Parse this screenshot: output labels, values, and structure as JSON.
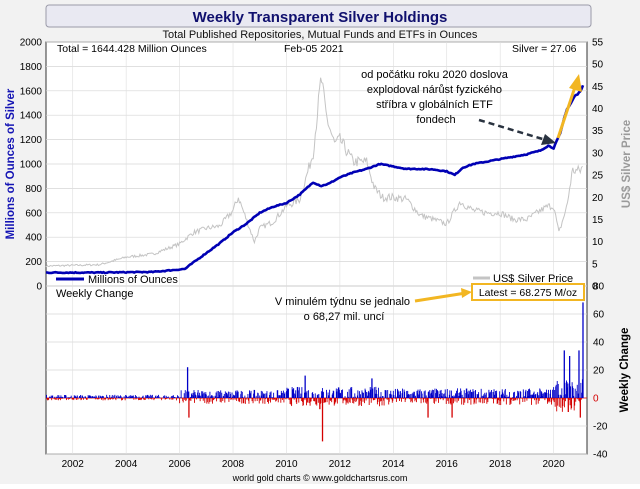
{
  "chart_data": [
    {
      "type": "line",
      "title": "Weekly Transparent Silver Holdings",
      "subtitle": "Total Published Repositories, Mutual Funds and ETFs in Ounces",
      "info_total": "Total = 1644.428 Million Ounces",
      "info_date": "Feb-05  2021",
      "info_silver": "Silver = 27.06",
      "ylabel_left": "Millions of Ounces of Silver",
      "ylabel_right": "US$ Silver Price",
      "ylim_left": [
        0,
        2000
      ],
      "ylim_right": [
        0,
        55
      ],
      "yticks_left": [
        "0",
        "200",
        "400",
        "600",
        "800",
        "1000",
        "1200",
        "1400",
        "1600",
        "1800",
        "2000"
      ],
      "yticks_right": [
        "0",
        "5",
        "10",
        "15",
        "20",
        "25",
        "30",
        "35",
        "40",
        "45",
        "50",
        "55"
      ],
      "xlim": [
        2001,
        2021.25
      ],
      "xticks": [
        "2002",
        "2004",
        "2006",
        "2008",
        "2010",
        "2012",
        "2014",
        "2016",
        "2018",
        "2020"
      ],
      "annotation": "od počátku roku 2020 doslova explodoval nárůst fyzického stříbra v globálních ETF fondech",
      "series": [
        {
          "name": "Millions of Ounces",
          "color": "#0000b4",
          "x": [
            2001,
            2003,
            2005,
            2006.2,
            2006.5,
            2007,
            2007.5,
            2008,
            2008.5,
            2009,
            2009.5,
            2010,
            2010.5,
            2011,
            2011.3,
            2011.6,
            2012,
            2012.5,
            2013,
            2013.5,
            2014,
            2014.5,
            2015,
            2015.5,
            2016,
            2016.3,
            2016.6,
            2017,
            2017.5,
            2018,
            2018.5,
            2019,
            2019.5,
            2019.8,
            2020,
            2020.1,
            2020.25,
            2020.4,
            2020.5,
            2020.6,
            2020.7,
            2020.8,
            2020.9,
            2021,
            2021.1
          ],
          "values": [
            110,
            110,
            115,
            140,
            190,
            270,
            350,
            440,
            510,
            600,
            650,
            680,
            750,
            850,
            820,
            840,
            890,
            930,
            960,
            1000,
            980,
            960,
            960,
            955,
            940,
            910,
            970,
            1000,
            1020,
            1040,
            1060,
            1080,
            1110,
            1150,
            1130,
            1180,
            1250,
            1380,
            1450,
            1480,
            1520,
            1560,
            1570,
            1600,
            1644
          ]
        },
        {
          "name": "US$ Silver Price",
          "color": "#c4c4c4",
          "x": [
            2001,
            2003,
            2004,
            2005,
            2006,
            2006.5,
            2007,
            2007.5,
            2008,
            2008.2,
            2008.8,
            2009,
            2009.5,
            2010,
            2010.5,
            2011,
            2011.3,
            2011.5,
            2011.8,
            2012,
            2012.5,
            2013,
            2013.3,
            2013.6,
            2014,
            2014.5,
            2015,
            2015.5,
            2016,
            2016.5,
            2017,
            2017.5,
            2018,
            2018.5,
            2019,
            2019.5,
            2019.8,
            2020,
            2020.2,
            2020.5,
            2020.7,
            2021,
            2021.1
          ],
          "values": [
            4.5,
            4.8,
            6.5,
            7.2,
            9.5,
            12,
            13,
            13.5,
            17,
            20,
            10,
            13,
            14.5,
            18,
            19.5,
            30,
            47,
            38,
            32,
            33,
            28,
            28,
            22,
            20,
            20,
            19.5,
            16,
            15,
            14,
            19,
            17,
            16.5,
            16.5,
            15,
            15,
            17,
            18,
            18,
            12,
            18,
            26,
            26,
            27.06
          ]
        },
        {
          "name": "Weekly Change",
          "color": "#0000c8",
          "negative_color": "#d40000",
          "ylim": [
            -40,
            80
          ],
          "yticks": [
            "-40",
            "-20",
            "0",
            "20",
            "40",
            "60",
            "80"
          ],
          "ylabel": "Weekly Change",
          "latest": "Latest = 68.275 M/oz",
          "latest_value": 68.275,
          "annotation": "V minulém týdnu se jednalo o 68,27 mil. uncí",
          "notable_x": [
            2006.3,
            2006.35,
            2010.7,
            2011.25,
            2011.35,
            2013.2,
            2015.3,
            2016.2,
            2020.4,
            2020.55,
            2020.6,
            2020.95,
            2021.0,
            2021.1
          ],
          "notable_values": [
            22,
            -14,
            16,
            -8,
            -31,
            14,
            -14,
            -14,
            34,
            -10,
            30,
            34,
            -14,
            68.275
          ]
        }
      ],
      "footer": "world gold charts © www.goldchartsrus.com"
    }
  ]
}
